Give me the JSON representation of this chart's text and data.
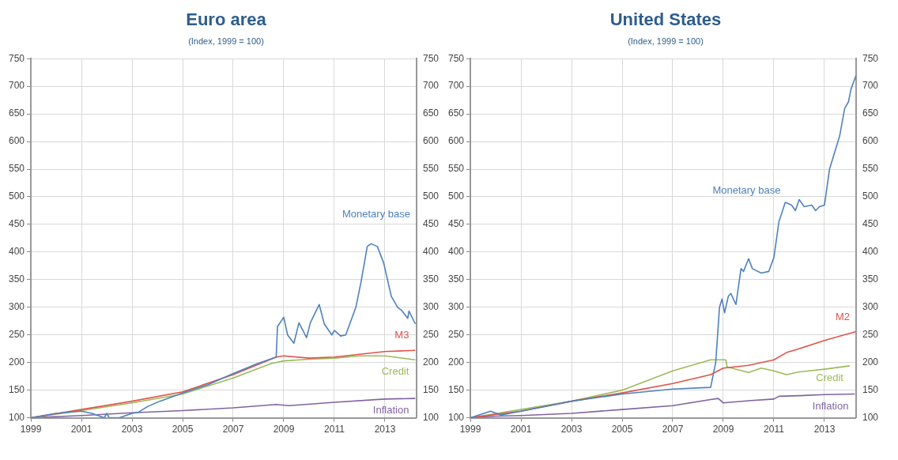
{
  "chart_data": [
    {
      "type": "line",
      "title": "Euro area",
      "subtitle": "(Index, 1999 = 100)",
      "xlim": [
        1999,
        2014.25
      ],
      "xticks": [
        1999,
        2001,
        2003,
        2005,
        2007,
        2009,
        2011,
        2013
      ],
      "ylim": [
        100,
        750
      ],
      "yticks": [
        100,
        150,
        200,
        250,
        300,
        350,
        400,
        450,
        500,
        550,
        600,
        650,
        700,
        750
      ],
      "y2lim": [
        100,
        750
      ],
      "y2ticks": [
        100,
        150,
        200,
        250,
        300,
        350,
        400,
        450,
        500,
        550,
        600,
        650,
        700,
        750
      ],
      "grid": true,
      "legend": false,
      "marker": "none",
      "line_style": "solid",
      "series": [
        {
          "name": "Monetary base",
          "color": "#4f81bd",
          "x": [
            1999,
            2000,
            2001,
            2001.42,
            2001.9,
            2002,
            2002.1,
            2002.5,
            2003,
            2003.25,
            2003.6,
            2004.1,
            2005,
            2006,
            2006.9,
            2007.9,
            2008.7,
            2008.75,
            2009,
            2009.15,
            2009.4,
            2009.6,
            2009.9,
            2010.05,
            2010.4,
            2010.6,
            2010.9,
            2011,
            2011.25,
            2011.45,
            2011.85,
            2012.05,
            2012.3,
            2012.45,
            2012.7,
            2012.95,
            2013.25,
            2013.5,
            2013.65,
            2013.9,
            2013.95,
            2014.2
          ],
          "values": [
            100,
            108,
            112,
            108,
            100,
            108,
            100,
            100,
            108,
            110,
            120,
            130,
            145,
            160,
            178,
            197,
            210,
            265,
            282,
            250,
            235,
            272,
            245,
            272,
            305,
            270,
            250,
            258,
            248,
            250,
            300,
            345,
            410,
            415,
            410,
            380,
            320,
            300,
            295,
            280,
            293,
            270
          ]
        },
        {
          "name": "M3",
          "color": "#e0534a",
          "x": [
            1999,
            2001,
            2003,
            2005,
            2007,
            2008.7,
            2009,
            2010,
            2011,
            2012,
            2013,
            2014.2
          ],
          "values": [
            100,
            115,
            130,
            147,
            178,
            210,
            212,
            208,
            210,
            215,
            220,
            222
          ]
        },
        {
          "name": "Credit",
          "color": "#9bbb59",
          "x": [
            1999,
            2001,
            2003,
            2005,
            2007,
            2008.5,
            2009,
            2010,
            2011,
            2012,
            2013,
            2014.2
          ],
          "values": [
            100,
            113,
            127,
            143,
            172,
            198,
            203,
            206,
            208,
            212,
            212,
            205
          ]
        },
        {
          "name": "Inflation",
          "color": "#8064a2",
          "x": [
            1999,
            2001,
            2003,
            2005,
            2007,
            2008.7,
            2009.2,
            2011,
            2013,
            2014.2
          ],
          "values": [
            100,
            104,
            109,
            113,
            118,
            124,
            122,
            128,
            134,
            135
          ]
        }
      ]
    },
    {
      "type": "line",
      "title": "United States",
      "subtitle": "(Index, 1999 = 100)",
      "xlim": [
        1999,
        2014.25
      ],
      "xticks": [
        1999,
        2001,
        2003,
        2005,
        2007,
        2009,
        2011,
        2013
      ],
      "ylim": [
        100,
        750
      ],
      "yticks": [
        100,
        150,
        200,
        250,
        300,
        350,
        400,
        450,
        500,
        550,
        600,
        650,
        700,
        750
      ],
      "y2lim": [
        100,
        750
      ],
      "y2ticks": [
        100,
        150,
        200,
        250,
        300,
        350,
        400,
        450,
        500,
        550,
        600,
        650,
        700,
        750
      ],
      "grid": true,
      "legend": false,
      "marker": "none",
      "line_style": "solid",
      "series": [
        {
          "name": "Monetary base",
          "color": "#4f81bd",
          "x": [
            1999,
            1999.8,
            2000.2,
            2001,
            2003,
            2005,
            2007,
            2008.5,
            2008.7,
            2008.85,
            2008.95,
            2009.05,
            2009.2,
            2009.3,
            2009.5,
            2009.7,
            2009.8,
            2010,
            2010.15,
            2010.5,
            2010.8,
            2011,
            2011.2,
            2011.45,
            2011.7,
            2011.85,
            2012,
            2012.2,
            2012.5,
            2012.65,
            2012.8,
            2013,
            2013.2,
            2013.6,
            2013.8,
            2013.95,
            2014.05,
            2014.25
          ],
          "values": [
            100,
            112,
            105,
            112,
            130,
            143,
            152,
            155,
            200,
            300,
            315,
            290,
            320,
            325,
            305,
            370,
            365,
            388,
            370,
            362,
            365,
            390,
            455,
            490,
            485,
            475,
            495,
            482,
            485,
            475,
            482,
            485,
            550,
            610,
            660,
            672,
            695,
            720
          ]
        },
        {
          "name": "M2",
          "color": "#e0534a",
          "x": [
            1999,
            2001,
            2003,
            2005,
            2007,
            2008.5,
            2009,
            2010,
            2011,
            2011.5,
            2012,
            2013,
            2014.25
          ],
          "values": [
            100,
            112,
            130,
            145,
            162,
            178,
            190,
            195,
            205,
            218,
            225,
            240,
            256
          ]
        },
        {
          "name": "Credit",
          "color": "#9bbb59",
          "x": [
            1999,
            2001,
            2003,
            2005,
            2007,
            2008.5,
            2009.1,
            2009.15,
            2010,
            2010.5,
            2011,
            2011.5,
            2012,
            2013,
            2014
          ],
          "values": [
            100,
            115,
            130,
            150,
            185,
            205,
            205,
            192,
            182,
            190,
            185,
            178,
            183,
            188,
            194
          ]
        },
        {
          "name": "Inflation",
          "color": "#8064a2",
          "x": [
            1999,
            2000,
            2001,
            2003,
            2005,
            2007,
            2008.5,
            2008.8,
            2009,
            2010,
            2011,
            2011.2,
            2012,
            2013,
            2014.2
          ],
          "values": [
            100,
            103,
            104,
            108,
            115,
            122,
            133,
            135,
            127,
            131,
            134,
            139,
            140,
            142,
            143
          ]
        }
      ]
    }
  ]
}
